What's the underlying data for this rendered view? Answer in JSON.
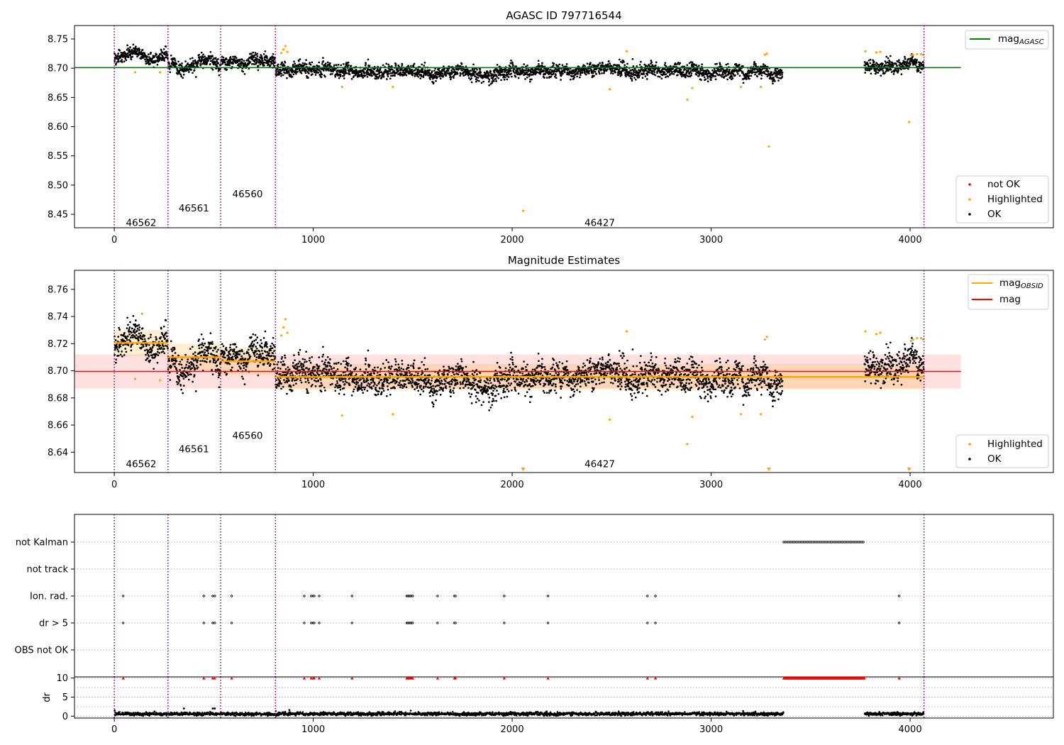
{
  "chart_data": [
    {
      "type": "scatter",
      "title": "AGASC ID 797716544",
      "xlim": [
        -200,
        4720
      ],
      "ylim": [
        8.427,
        8.773
      ],
      "xticks": [
        0,
        1000,
        2000,
        3000,
        4000
      ],
      "yticks": [
        8.45,
        8.5,
        8.55,
        8.6,
        8.65,
        8.7,
        8.75
      ],
      "ytick_labels": [
        "8.45",
        "8.50",
        "8.55",
        "8.60",
        "8.65",
        "8.70",
        "8.75"
      ],
      "obsid_boundaries": [
        0,
        270,
        535,
        810,
        4070
      ],
      "obsid_labels": [
        {
          "text": "46562",
          "x": 135,
          "y": 8.435
        },
        {
          "text": "46561",
          "x": 400,
          "y": 8.46
        },
        {
          "text": "46560",
          "x": 670,
          "y": 8.484
        },
        {
          "text": "46427",
          "x": 2440,
          "y": 8.435
        }
      ],
      "reference_line": {
        "name": "mag_AGASC",
        "label": "mag",
        "subscript": "AGASC",
        "y": 8.701,
        "x": [
          -200,
          4255
        ],
        "color": "#008000"
      },
      "segments": [
        {
          "x": [
            0,
            270
          ],
          "mean": 8.722,
          "sd": 0.008
        },
        {
          "x": [
            270,
            535
          ],
          "mean": 8.706,
          "sd": 0.009
        },
        {
          "x": [
            535,
            810
          ],
          "mean": 8.712,
          "sd": 0.008
        },
        {
          "x": [
            810,
            3360
          ],
          "mean": 8.695,
          "sd": 0.0085
        },
        {
          "x": [
            3770,
            4070
          ],
          "mean": 8.702,
          "sd": 0.009
        }
      ],
      "highlighted": [
        {
          "x": 105,
          "y": 8.693
        },
        {
          "x": 230,
          "y": 8.693
        },
        {
          "x": 840,
          "y": 8.726
        },
        {
          "x": 850,
          "y": 8.732
        },
        {
          "x": 860,
          "y": 8.738
        },
        {
          "x": 870,
          "y": 8.728
        },
        {
          "x": 1145,
          "y": 8.668
        },
        {
          "x": 1400,
          "y": 8.668
        },
        {
          "x": 2055,
          "y": 8.456
        },
        {
          "x": 2490,
          "y": 8.664
        },
        {
          "x": 2575,
          "y": 8.729
        },
        {
          "x": 2880,
          "y": 8.646
        },
        {
          "x": 2905,
          "y": 8.666
        },
        {
          "x": 3150,
          "y": 8.668
        },
        {
          "x": 3250,
          "y": 8.668
        },
        {
          "x": 3270,
          "y": 8.723
        },
        {
          "x": 3280,
          "y": 8.725
        },
        {
          "x": 3290,
          "y": 8.566
        },
        {
          "x": 3775,
          "y": 8.729
        },
        {
          "x": 3830,
          "y": 8.727
        },
        {
          "x": 3850,
          "y": 8.728
        },
        {
          "x": 3995,
          "y": 8.608
        },
        {
          "x": 4005,
          "y": 8.722
        },
        {
          "x": 4015,
          "y": 8.723
        },
        {
          "x": 4035,
          "y": 8.724
        },
        {
          "x": 4055,
          "y": 8.724
        },
        {
          "x": 4065,
          "y": 8.723
        }
      ],
      "legend_lines": {
        "entries": [
          {
            "label": "mag",
            "subscript": "AGASC",
            "color": "#008000"
          }
        ],
        "position": "upper right"
      },
      "legend_points": {
        "entries": [
          {
            "label": "not OK",
            "color": "#ff0000"
          },
          {
            "label": "Highlighted",
            "color": "#ffa500"
          },
          {
            "label": "OK",
            "color": "#000000"
          }
        ],
        "position": "lower right"
      }
    },
    {
      "type": "scatter",
      "title": "Magnitude Estimates",
      "xlim": [
        -200,
        4720
      ],
      "ylim": [
        8.625,
        8.774
      ],
      "xticks": [
        0,
        1000,
        2000,
        3000,
        4000
      ],
      "yticks": [
        8.64,
        8.66,
        8.68,
        8.7,
        8.72,
        8.74,
        8.76
      ],
      "ytick_labels": [
        "8.64",
        "8.66",
        "8.68",
        "8.70",
        "8.72",
        "8.74",
        "8.76"
      ],
      "obsid_boundaries": [
        0,
        270,
        535,
        810,
        4070
      ],
      "obsid_labels": [
        {
          "text": "46562",
          "x": 135,
          "y": 8.631
        },
        {
          "text": "46561",
          "x": 400,
          "y": 8.642
        },
        {
          "text": "46560",
          "x": 670,
          "y": 8.652
        },
        {
          "text": "46427",
          "x": 2440,
          "y": 8.631
        }
      ],
      "mag": {
        "label": "mag",
        "y": 8.6995,
        "band": [
          8.687,
          8.712
        ],
        "x": [
          -200,
          4255
        ],
        "color": "#ff0000"
      },
      "mag_obsid": [
        {
          "x": [
            0,
            270
          ],
          "y": 8.7205,
          "band": [
            8.711,
            8.73
          ]
        },
        {
          "x": [
            270,
            535
          ],
          "y": 8.71,
          "band": [
            8.7,
            8.72
          ]
        },
        {
          "x": [
            535,
            810
          ],
          "y": 8.707,
          "band": [
            8.697,
            8.717
          ]
        },
        {
          "x": [
            810,
            4070
          ],
          "y": 8.6955,
          "band": [
            8.686,
            8.705
          ]
        }
      ],
      "segments": [
        {
          "x": [
            0,
            270
          ],
          "mean": 8.722,
          "sd": 0.008
        },
        {
          "x": [
            270,
            535
          ],
          "mean": 8.706,
          "sd": 0.009
        },
        {
          "x": [
            535,
            810
          ],
          "mean": 8.712,
          "sd": 0.008
        },
        {
          "x": [
            810,
            3360
          ],
          "mean": 8.695,
          "sd": 0.0085
        },
        {
          "x": [
            3770,
            4070
          ],
          "mean": 8.702,
          "sd": 0.009
        }
      ],
      "highlighted": [
        {
          "x": 105,
          "y": 8.694
        },
        {
          "x": 140,
          "y": 8.742
        },
        {
          "x": 230,
          "y": 8.693
        },
        {
          "x": 840,
          "y": 8.726
        },
        {
          "x": 850,
          "y": 8.732
        },
        {
          "x": 860,
          "y": 8.738
        },
        {
          "x": 870,
          "y": 8.728
        },
        {
          "x": 1145,
          "y": 8.667
        },
        {
          "x": 1400,
          "y": 8.668
        },
        {
          "x": 2490,
          "y": 8.664
        },
        {
          "x": 2575,
          "y": 8.729
        },
        {
          "x": 2880,
          "y": 8.646
        },
        {
          "x": 2905,
          "y": 8.666
        },
        {
          "x": 3150,
          "y": 8.668
        },
        {
          "x": 3250,
          "y": 8.668
        },
        {
          "x": 3270,
          "y": 8.723
        },
        {
          "x": 3280,
          "y": 8.725
        },
        {
          "x": 3775,
          "y": 8.729
        },
        {
          "x": 3830,
          "y": 8.727
        },
        {
          "x": 3850,
          "y": 8.728
        },
        {
          "x": 4005,
          "y": 8.722
        },
        {
          "x": 4015,
          "y": 8.723
        },
        {
          "x": 4035,
          "y": 8.724
        },
        {
          "x": 4055,
          "y": 8.724
        },
        {
          "x": 4065,
          "y": 8.723
        }
      ],
      "offscale_markers": [
        {
          "x": 2055
        },
        {
          "x": 3290
        },
        {
          "x": 3995
        }
      ],
      "legend_lines": {
        "entries": [
          {
            "label": "mag",
            "subscript": "OBSID",
            "color": "#ffa500"
          },
          {
            "label": "mag",
            "subscript": "",
            "color": "#ff0000"
          }
        ],
        "position": "upper right"
      },
      "legend_points": {
        "entries": [
          {
            "label": "Highlighted",
            "color": "#ffa500"
          },
          {
            "label": "OK",
            "color": "#000000"
          }
        ],
        "position": "lower right"
      }
    },
    {
      "type": "scatter",
      "xlim": [
        -200,
        4720
      ],
      "xticks": [
        0,
        1000,
        2000,
        3000,
        4000
      ],
      "obsid_boundaries": [
        0,
        270,
        535,
        810,
        4070
      ],
      "flag_rows": [
        "not Kalman",
        "not track",
        "Ion. rad.",
        "dr > 5",
        "OBS not OK"
      ],
      "not_kalman_range": [
        3365,
        3770
      ],
      "ion_rad_x": [
        45,
        450,
        495,
        505,
        590,
        955,
        990,
        1000,
        1005,
        1030,
        1195,
        1470,
        1475,
        1480,
        1485,
        1490,
        1495,
        1500,
        1625,
        1710,
        1715,
        1960,
        2180,
        2680,
        2720,
        3945
      ],
      "dr_gt5_x": [
        45,
        450,
        495,
        505,
        590,
        955,
        990,
        1000,
        1005,
        1030,
        1195,
        1470,
        1475,
        1480,
        1485,
        1490,
        1495,
        1500,
        1625,
        1710,
        1715,
        1960,
        2180,
        2680,
        2720,
        3945
      ],
      "dr": {
        "ylabel": "dr",
        "ylim": [
          -0.5,
          10.3
        ],
        "yticks": [
          0,
          5,
          10
        ],
        "ytick_labels": [
          "0",
          "5",
          "10"
        ],
        "clipped_value": 10,
        "clipped_x_singles": [
          45,
          450,
          495,
          505,
          590,
          955,
          990,
          1000,
          1005,
          1030,
          1195,
          1470,
          1475,
          1480,
          1485,
          1490,
          1495,
          1500,
          1625,
          1710,
          1715,
          1960,
          2180,
          2680,
          2720,
          3945
        ],
        "clipped_range": [
          3365,
          3770
        ],
        "baseline_mean": 0.6,
        "spikes": [
          {
            "x": 350,
            "y": 2.0
          },
          {
            "x": 495,
            "y": 2.0
          },
          {
            "x": 505,
            "y": 2.0
          },
          {
            "x": 880,
            "y": 1.6
          }
        ]
      }
    }
  ]
}
